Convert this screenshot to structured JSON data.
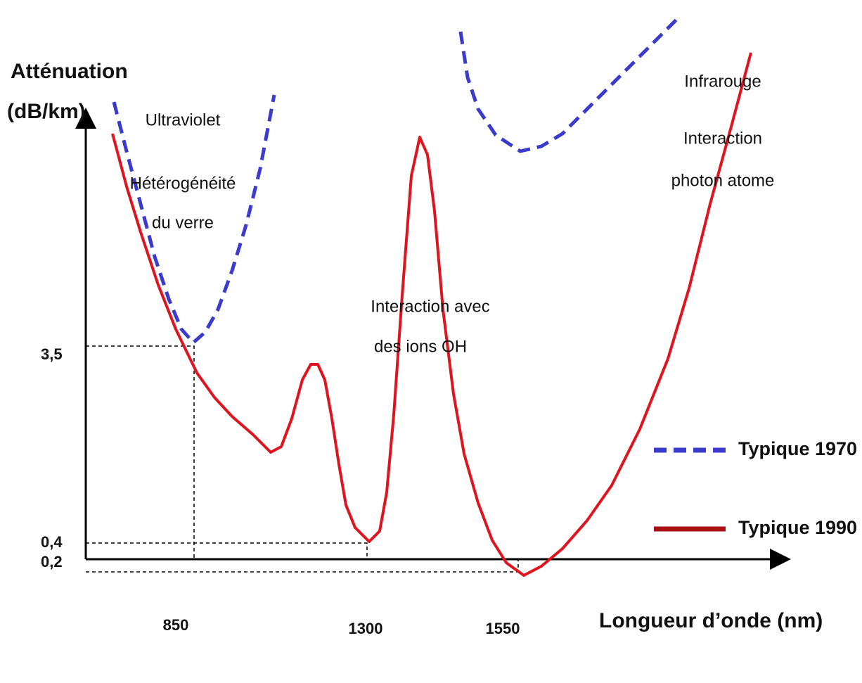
{
  "axes": {
    "y_label_line1": "Atténuation",
    "y_label_line2": "(dB/km)",
    "x_label": "Longueur d’onde (nm)"
  },
  "y_ticks": [
    "3,5",
    "0,4",
    "0,2"
  ],
  "x_ticks": [
    "850",
    "1300",
    "1550"
  ],
  "annotations": {
    "uv": [
      "Ultraviolet",
      "Hétérogénéité",
      "du verre"
    ],
    "oh": [
      "Interaction avec",
      "des ions OH"
    ],
    "ir": [
      "Infrarouge",
      "Interaction",
      "photon atome"
    ]
  },
  "legend": [
    "Typique 1970",
    "Typique 1990"
  ]
}
